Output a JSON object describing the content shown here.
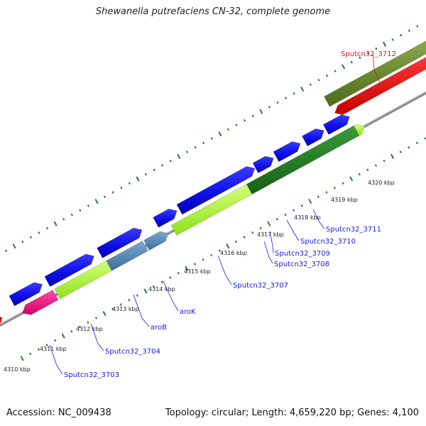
{
  "title": "Shewanella putrefaciens CN-32, complete genome",
  "footer": {
    "accession": "Accession: NC_009438",
    "summary": "Topology: circular; Length: 4,659,220 bp; Genes: 4,100"
  },
  "colors": {
    "backbone": "#8a8a8a",
    "tick": "#2a7a2a",
    "label_default": "#1a1ad8",
    "label_highlight": "#e01010"
  },
  "scale_labels": [
    "4310 kbp",
    "4311 kbp",
    "4312 kbp",
    "4313 kbp",
    "4314 kbp",
    "4315 kbp",
    "4316 kbp",
    "4317 kbp",
    "4318 kbp",
    "4319 kbp",
    "4320 kbp"
  ],
  "genes": [
    {
      "label": "Sputcn32_3703",
      "color": "blue"
    },
    {
      "label": "Sputcn32_3704",
      "color": "blue"
    },
    {
      "label": "aroB",
      "color": "blue"
    },
    {
      "label": "aroK",
      "color": "blue"
    },
    {
      "label": "Sputcn32_3707",
      "color": "blue"
    },
    {
      "label": "Sputcn32_3708",
      "color": "blue"
    },
    {
      "label": "Sputcn32_3709",
      "color": "blue"
    },
    {
      "label": "Sputcn32_3710",
      "color": "blue"
    },
    {
      "label": "Sputcn32_3711",
      "color": "blue"
    },
    {
      "label": "Sputcn32_3712",
      "color": "red"
    }
  ]
}
